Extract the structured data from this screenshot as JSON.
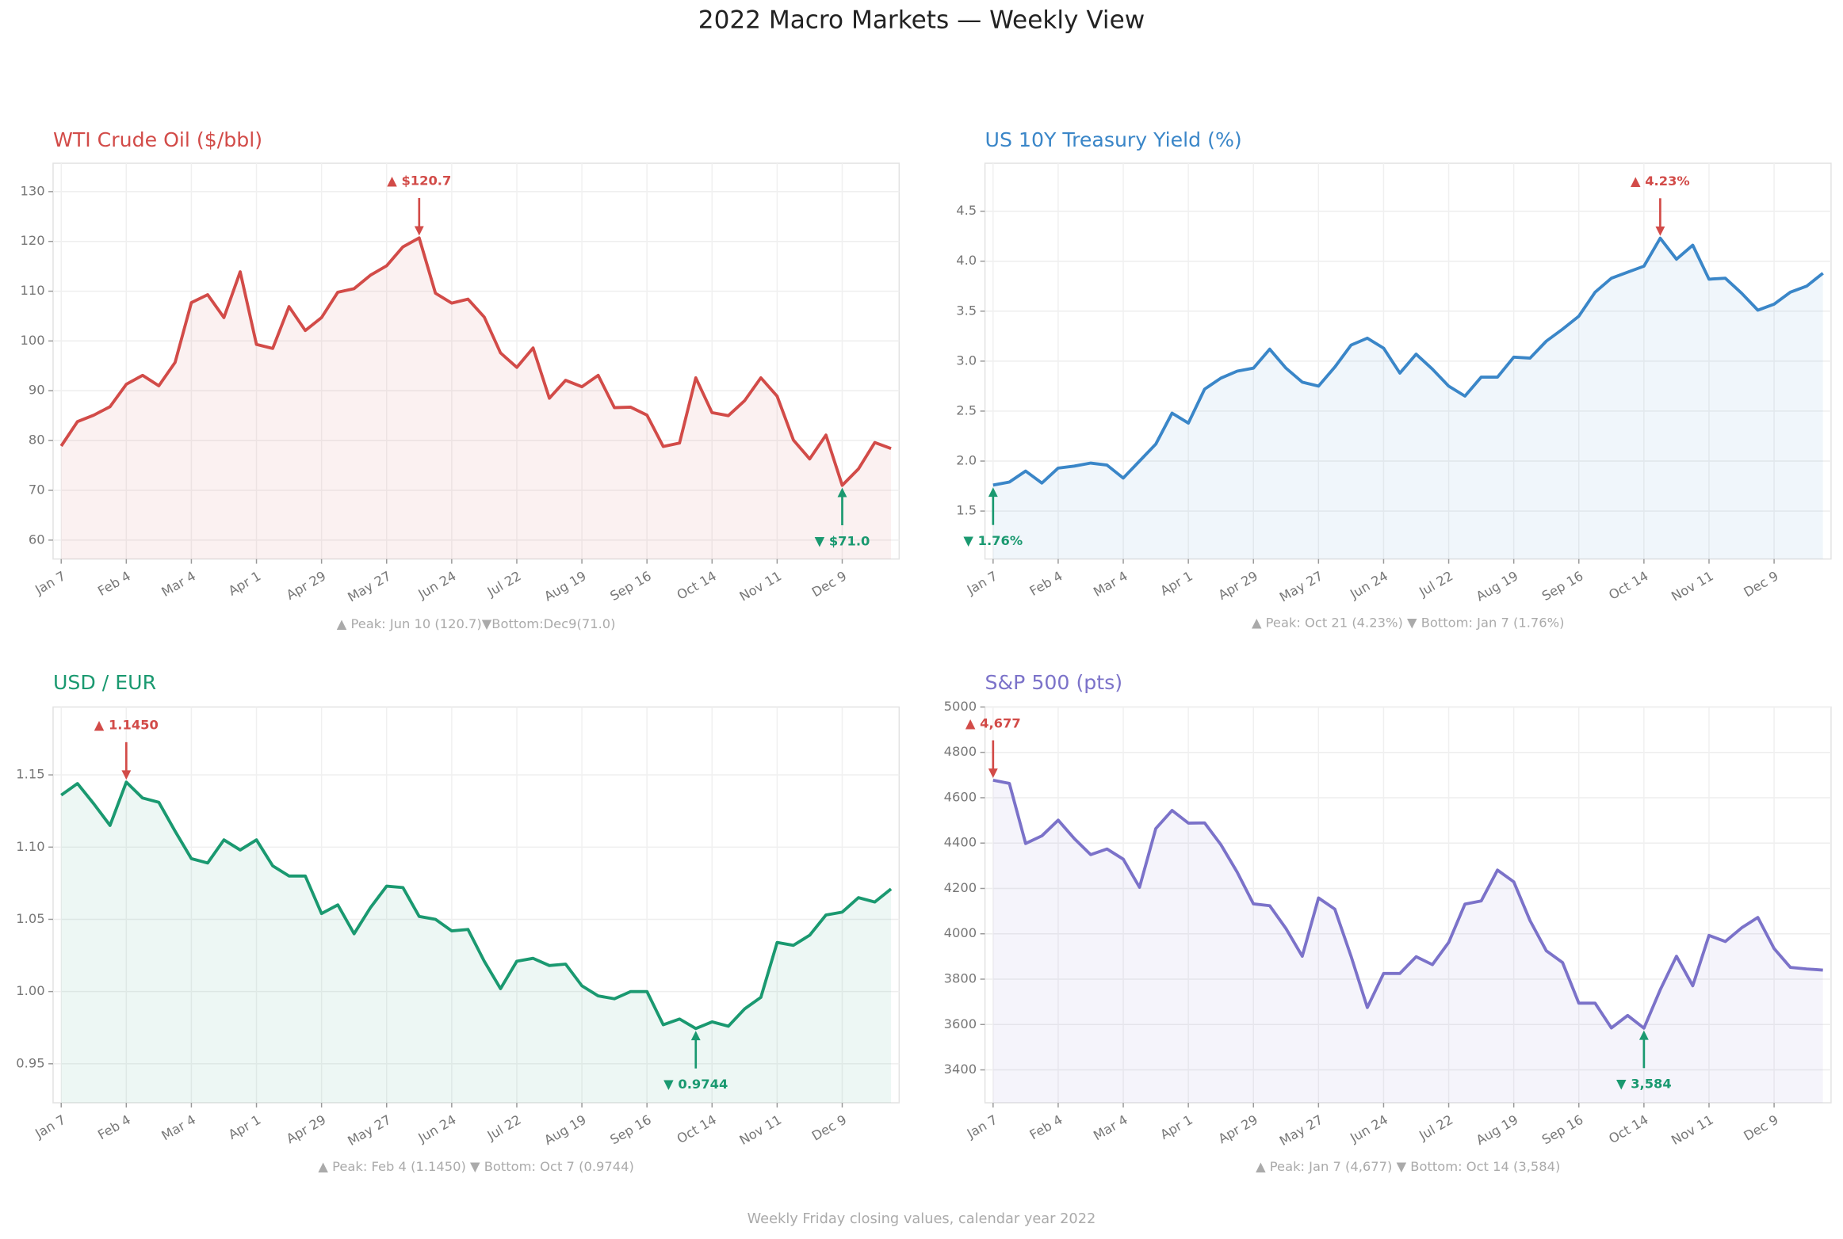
{
  "title": "2022 Macro Markets — Weekly View",
  "footer": "Weekly Friday closing values, calendar year 2022",
  "chart_data": [
    {
      "type": "line",
      "title": "WTI Crude Oil ($/bbl)",
      "color": "#d24b48",
      "grid": true,
      "categories": [
        "Jan 7",
        null,
        null,
        null,
        "Feb 4",
        null,
        null,
        null,
        "Mar 4",
        null,
        null,
        null,
        "Apr 1",
        null,
        null,
        null,
        "Apr 29",
        null,
        null,
        null,
        "May 27",
        null,
        null,
        null,
        "Jun 24",
        null,
        null,
        null,
        "Jul 22",
        null,
        null,
        null,
        "Aug 19",
        null,
        null,
        null,
        "Sep 16",
        null,
        null,
        null,
        "Oct 14",
        null,
        null,
        null,
        "Nov 11",
        null,
        null,
        null,
        "Dec 9",
        null,
        null,
        null
      ],
      "values": [
        78.9,
        83.8,
        85.1,
        86.8,
        91.3,
        93.1,
        91.0,
        95.7,
        107.7,
        109.3,
        104.7,
        113.9,
        99.3,
        98.5,
        106.9,
        102.1,
        104.7,
        109.8,
        110.5,
        113.2,
        115.1,
        118.9,
        120.7,
        109.6,
        107.6,
        108.4,
        104.8,
        97.6,
        94.7,
        98.6,
        88.5,
        92.1,
        90.8,
        93.1,
        86.6,
        86.7,
        85.1,
        78.8,
        79.5,
        92.6,
        85.6,
        85.0,
        88.0,
        92.6,
        88.9,
        80.1,
        76.3,
        81.1,
        71.0,
        74.3,
        79.6,
        78.4
      ],
      "ylim": [
        56.2,
        135.7
      ],
      "yticks": [
        60,
        70,
        80,
        90,
        100,
        110,
        120,
        130
      ],
      "annotations": {
        "peak": {
          "text": "▲ $120.7",
          "color": "#d24b48"
        },
        "bottom": {
          "text": "▼ $71.0",
          "color": "#1a9970"
        }
      },
      "note": "▲ Peak: Jun 10 (120.7)▼Bottom:Dec9(71.0)"
    },
    {
      "type": "line",
      "title": "US 10Y Treasury Yield (%)",
      "color": "#3a86c8",
      "grid": true,
      "categories": [
        "Jan 7",
        null,
        null,
        null,
        "Feb 4",
        null,
        null,
        null,
        "Mar 4",
        null,
        null,
        null,
        "Apr 1",
        null,
        null,
        null,
        "Apr 29",
        null,
        null,
        null,
        "May 27",
        null,
        null,
        null,
        "Jun 24",
        null,
        null,
        null,
        "Jul 22",
        null,
        null,
        null,
        "Aug 19",
        null,
        null,
        null,
        "Sep 16",
        null,
        null,
        null,
        "Oct 14",
        null,
        null,
        null,
        "Nov 11",
        null,
        null,
        null,
        "Dec 9",
        null,
        null,
        null
      ],
      "values": [
        1.76,
        1.79,
        1.9,
        1.78,
        1.93,
        1.95,
        1.98,
        1.96,
        1.83,
        2.0,
        2.17,
        2.48,
        2.38,
        2.72,
        2.83,
        2.9,
        2.93,
        3.12,
        2.93,
        2.79,
        2.75,
        2.94,
        3.16,
        3.23,
        3.13,
        2.88,
        3.07,
        2.92,
        2.75,
        2.65,
        2.84,
        2.84,
        3.04,
        3.03,
        3.2,
        3.32,
        3.45,
        3.69,
        3.83,
        3.89,
        3.95,
        4.23,
        4.02,
        4.16,
        3.82,
        3.83,
        3.68,
        3.51,
        3.57,
        3.69,
        3.75,
        3.88
      ],
      "ylim": [
        1.02,
        4.98
      ],
      "yticks": [
        1.5,
        {
          "value": 2,
          "label": "2.0"
        },
        2.5,
        {
          "value": 3,
          "label": "3.0"
        },
        3.5,
        {
          "value": 4,
          "label": "4.0"
        },
        4.5
      ],
      "annotations": {
        "peak": {
          "text": "▲ 4.23%",
          "color": "#d24b48"
        },
        "bottom": {
          "text": "▼ 1.76%",
          "color": "#1a9970"
        }
      },
      "note": "▲ Peak: Oct 21 (4.23%)   ▼ Bottom: Jan 7 (1.76%)"
    },
    {
      "type": "line",
      "title": "USD / EUR",
      "color": "#1a9970",
      "grid": true,
      "categories": [
        "Jan 7",
        null,
        null,
        null,
        "Feb 4",
        null,
        null,
        null,
        "Mar 4",
        null,
        null,
        null,
        "Apr 1",
        null,
        null,
        null,
        "Apr 29",
        null,
        null,
        null,
        "May 27",
        null,
        null,
        null,
        "Jun 24",
        null,
        null,
        null,
        "Jul 22",
        null,
        null,
        null,
        "Aug 19",
        null,
        null,
        null,
        "Sep 16",
        null,
        null,
        null,
        "Oct 14",
        null,
        null,
        null,
        "Nov 11",
        null,
        null,
        null,
        "Dec 9",
        null,
        null,
        null
      ],
      "values": [
        1.136,
        1.144,
        1.13,
        1.115,
        1.145,
        1.134,
        1.131,
        1.111,
        1.092,
        1.089,
        1.105,
        1.098,
        1.105,
        1.087,
        1.08,
        1.08,
        1.054,
        1.06,
        1.04,
        1.058,
        1.073,
        1.072,
        1.052,
        1.05,
        1.042,
        1.043,
        1.021,
        1.002,
        1.021,
        1.023,
        1.018,
        1.019,
        1.004,
        0.997,
        0.995,
        1.0,
        1.0,
        0.977,
        0.981,
        0.9744,
        0.979,
        0.976,
        0.988,
        0.996,
        1.034,
        1.032,
        1.039,
        1.053,
        1.055,
        1.065,
        1.062,
        1.071
      ],
      "ylim": [
        0.923,
        1.197
      ],
      "yticks": [
        0.95,
        {
          "value": 1,
          "label": "1.00"
        },
        1.05,
        {
          "value": 1.1,
          "label": "1.10"
        },
        1.15
      ],
      "annotations": {
        "peak": {
          "text": "▲ 1.1450",
          "color": "#d24b48"
        },
        "bottom": {
          "text": "▼ 0.9744",
          "color": "#1a9970"
        }
      },
      "note": "▲ Peak: Feb 4 (1.1450)   ▼ Bottom: Oct 7 (0.9744)"
    },
    {
      "type": "line",
      "title": "S&P 500 (pts)",
      "color": "#7b72c9",
      "grid": true,
      "categories": [
        "Jan 7",
        null,
        null,
        null,
        "Feb 4",
        null,
        null,
        null,
        "Mar 4",
        null,
        null,
        null,
        "Apr 1",
        null,
        null,
        null,
        "Apr 29",
        null,
        null,
        null,
        "May 27",
        null,
        null,
        null,
        "Jun 24",
        null,
        null,
        null,
        "Jul 22",
        null,
        null,
        null,
        "Aug 19",
        null,
        null,
        null,
        "Sep 16",
        null,
        null,
        null,
        "Oct 14",
        null,
        null,
        null,
        "Nov 11",
        null,
        null,
        null,
        "Dec 9",
        null,
        null,
        null
      ],
      "values": [
        4677,
        4663,
        4398,
        4432,
        4501,
        4419,
        4349,
        4374,
        4329,
        4205,
        4464,
        4544,
        4488,
        4489,
        4393,
        4272,
        4132,
        4124,
        4023,
        3901,
        4158,
        4109,
        3901,
        3675,
        3825,
        3825,
        3899,
        3864,
        3962,
        4131,
        4145,
        4281,
        4229,
        4058,
        3925,
        3873,
        3694,
        3694,
        3585,
        3640,
        3584,
        3753,
        3901,
        3771,
        3993,
        3966,
        4026,
        4072,
        3935,
        3852,
        3845,
        3840
      ],
      "ylim": [
        3255,
        5000
      ],
      "yticks": [
        3400,
        3600,
        3800,
        4000,
        4200,
        4400,
        4600,
        4800,
        5000
      ],
      "annotations": {
        "peak": {
          "text": "▲ 4,677",
          "color": "#d24b48"
        },
        "bottom": {
          "text": "▼ 3,584",
          "color": "#1a9970"
        }
      },
      "note": "▲ Peak: Jan 7 (4,677)   ▼ Bottom: Oct 14 (3,584)"
    }
  ]
}
